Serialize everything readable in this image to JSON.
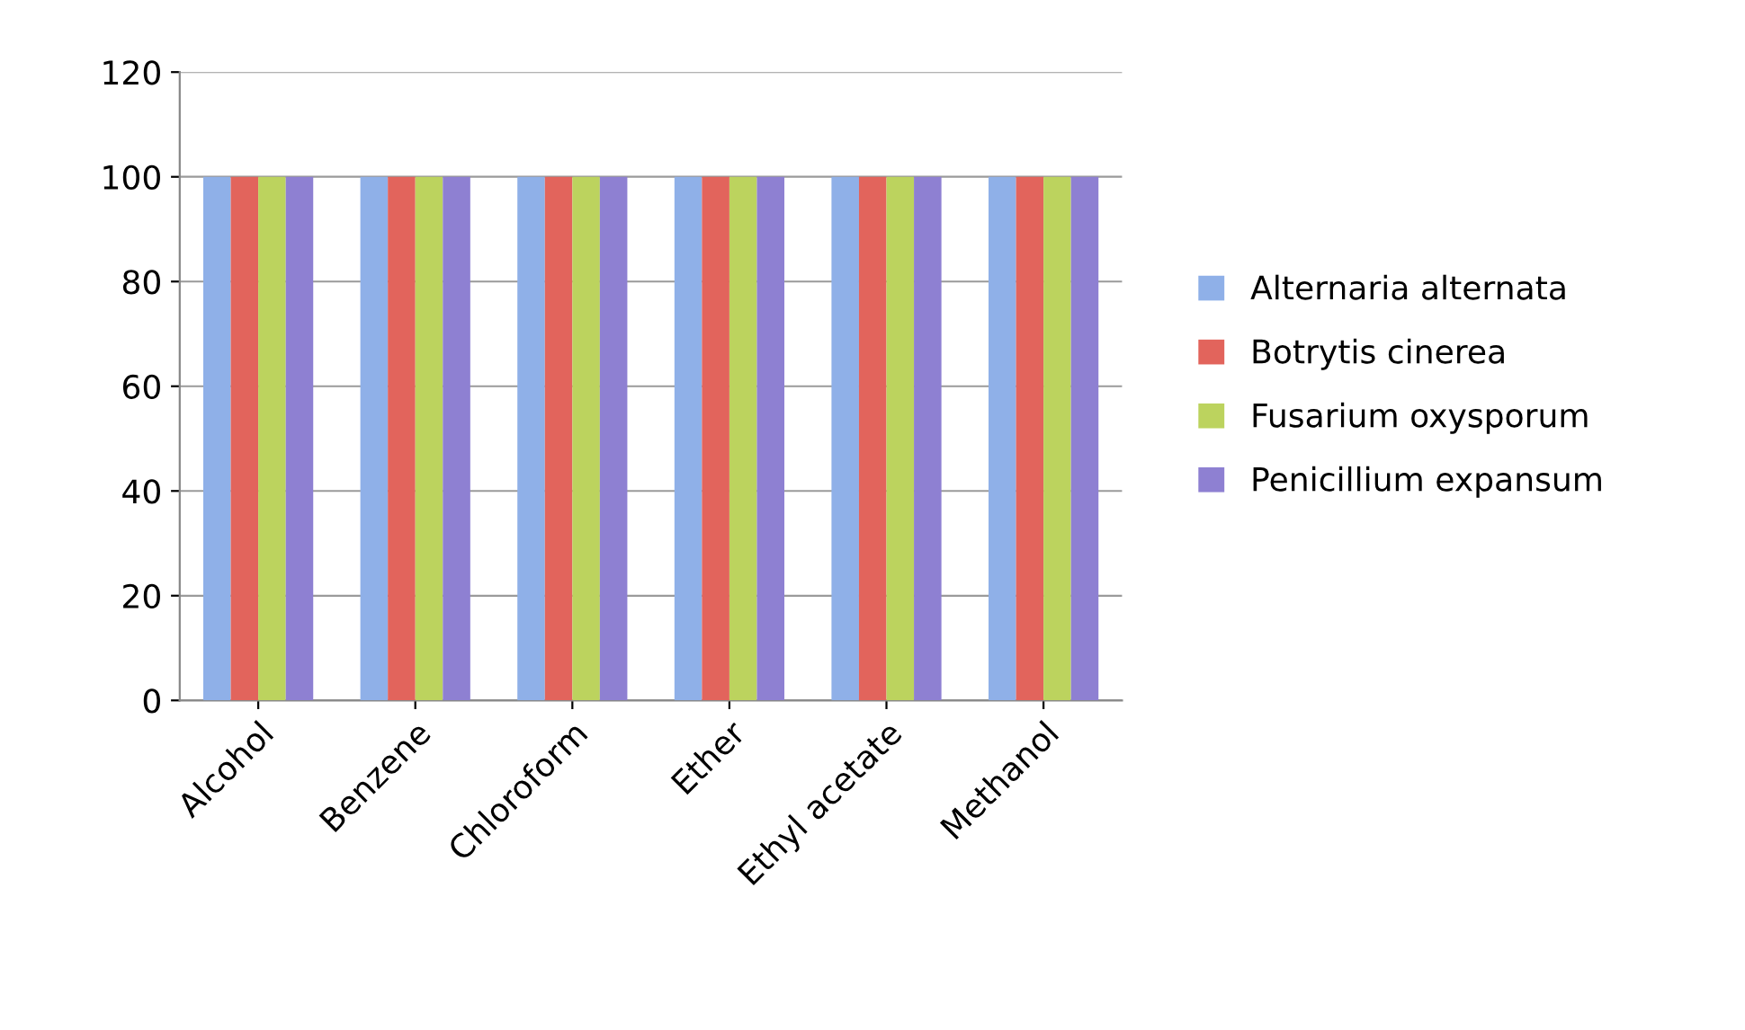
{
  "chart_data": {
    "type": "bar",
    "categories": [
      "Alcohol",
      "Benzene",
      "Chloroform",
      "Ether",
      "Ethyl acetate",
      "Methanol"
    ],
    "series": [
      {
        "name": "Alternaria alternata",
        "color": "#8fb0e8",
        "values": [
          100,
          100,
          100,
          100,
          100,
          100
        ]
      },
      {
        "name": "Botrytis cinerea",
        "color": "#e2645c",
        "values": [
          100,
          100,
          100,
          100,
          100,
          100
        ]
      },
      {
        "name": "Fusarium oxysporum",
        "color": "#bcd35e",
        "values": [
          100,
          100,
          100,
          100,
          100,
          100
        ]
      },
      {
        "name": "Penicillium expansum",
        "color": "#8e80d2",
        "values": [
          100,
          100,
          100,
          100,
          100,
          100
        ]
      }
    ],
    "ylim": [
      0,
      120
    ],
    "yticks": [
      0,
      20,
      40,
      60,
      80,
      100,
      120
    ],
    "grid": "y",
    "legend": "right"
  }
}
